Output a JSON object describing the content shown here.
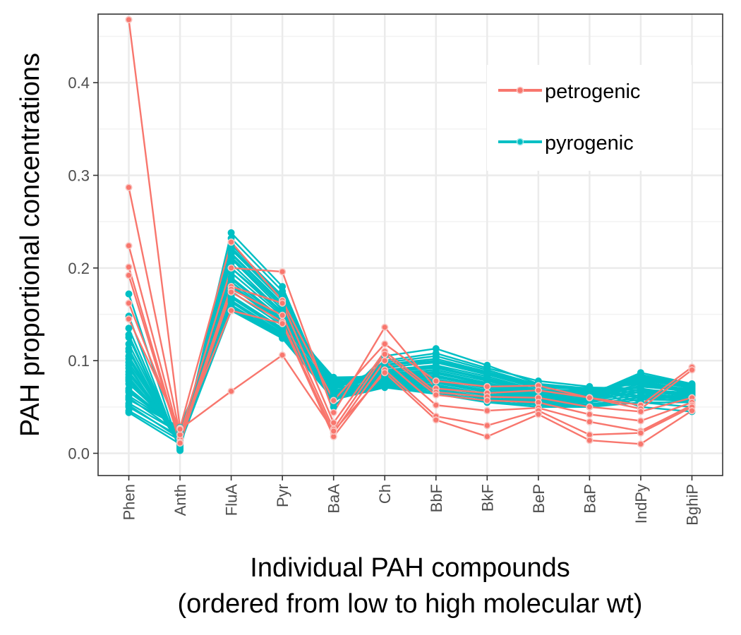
{
  "chart_data": {
    "type": "line",
    "title": "",
    "xlabel": [
      "Individual PAH compounds",
      "(ordered from low to high molecular wt)"
    ],
    "ylabel": "PAH proportional concentrations",
    "categories": [
      "Phen",
      "Anth",
      "FluA",
      "Pyr",
      "BaA",
      "Ch",
      "BbF",
      "BkF",
      "BeP",
      "BaP",
      "IndPy",
      "BghiP"
    ],
    "ylim": [
      -0.024,
      0.474
    ],
    "y_ticks": [
      0.0,
      0.1,
      0.2,
      0.3,
      0.4
    ],
    "y_tick_labels": [
      "0.0",
      "0.1",
      "0.2",
      "0.3",
      "0.4"
    ],
    "grid": true,
    "legend_position": "top-right",
    "legend": [
      {
        "label": "petrogenic",
        "color": "#F8766D"
      },
      {
        "label": "pyrogenic",
        "color": "#00BFC4"
      }
    ],
    "series": [
      {
        "group": "pyrogenic",
        "values": [
          0.172,
          0.004,
          0.238,
          0.18,
          0.05,
          0.105,
          0.113,
          0.095,
          0.075,
          0.07,
          0.05,
          0.045
        ]
      },
      {
        "group": "pyrogenic",
        "values": [
          0.148,
          0.003,
          0.232,
          0.175,
          0.055,
          0.1,
          0.108,
          0.092,
          0.078,
          0.072,
          0.055,
          0.05
        ]
      },
      {
        "group": "pyrogenic",
        "values": [
          0.135,
          0.006,
          0.225,
          0.17,
          0.06,
          0.098,
          0.105,
          0.09,
          0.074,
          0.068,
          0.06,
          0.055
        ]
      },
      {
        "group": "pyrogenic",
        "values": [
          0.125,
          0.008,
          0.22,
          0.165,
          0.065,
          0.095,
          0.1,
          0.087,
          0.072,
          0.07,
          0.065,
          0.06
        ]
      },
      {
        "group": "pyrogenic",
        "values": [
          0.118,
          0.01,
          0.215,
          0.16,
          0.07,
          0.093,
          0.098,
          0.085,
          0.07,
          0.071,
          0.07,
          0.062
        ]
      },
      {
        "group": "pyrogenic",
        "values": [
          0.11,
          0.012,
          0.21,
          0.155,
          0.072,
          0.09,
          0.095,
          0.083,
          0.068,
          0.069,
          0.075,
          0.065
        ]
      },
      {
        "group": "pyrogenic",
        "values": [
          0.105,
          0.014,
          0.205,
          0.152,
          0.075,
          0.088,
          0.092,
          0.08,
          0.066,
          0.067,
          0.078,
          0.068
        ]
      },
      {
        "group": "pyrogenic",
        "values": [
          0.098,
          0.015,
          0.2,
          0.15,
          0.078,
          0.086,
          0.09,
          0.078,
          0.065,
          0.066,
          0.08,
          0.07
        ]
      },
      {
        "group": "pyrogenic",
        "values": [
          0.092,
          0.016,
          0.195,
          0.148,
          0.08,
          0.085,
          0.088,
          0.076,
          0.064,
          0.065,
          0.082,
          0.072
        ]
      },
      {
        "group": "pyrogenic",
        "values": [
          0.088,
          0.018,
          0.19,
          0.145,
          0.082,
          0.083,
          0.086,
          0.075,
          0.063,
          0.064,
          0.085,
          0.074
        ]
      },
      {
        "group": "pyrogenic",
        "values": [
          0.085,
          0.02,
          0.185,
          0.142,
          0.079,
          0.082,
          0.084,
          0.073,
          0.062,
          0.063,
          0.087,
          0.075
        ]
      },
      {
        "group": "pyrogenic",
        "values": [
          0.08,
          0.022,
          0.18,
          0.14,
          0.076,
          0.08,
          0.082,
          0.072,
          0.061,
          0.062,
          0.083,
          0.073
        ]
      },
      {
        "group": "pyrogenic",
        "values": [
          0.075,
          0.024,
          0.175,
          0.138,
          0.073,
          0.079,
          0.08,
          0.07,
          0.06,
          0.061,
          0.079,
          0.071
        ]
      },
      {
        "group": "pyrogenic",
        "values": [
          0.07,
          0.025,
          0.17,
          0.135,
          0.07,
          0.078,
          0.078,
          0.068,
          0.059,
          0.06,
          0.075,
          0.069
        ]
      },
      {
        "group": "pyrogenic",
        "values": [
          0.066,
          0.026,
          0.168,
          0.132,
          0.068,
          0.077,
          0.076,
          0.066,
          0.058,
          0.059,
          0.072,
          0.067
        ]
      },
      {
        "group": "pyrogenic",
        "values": [
          0.062,
          0.027,
          0.165,
          0.13,
          0.066,
          0.076,
          0.074,
          0.064,
          0.057,
          0.058,
          0.069,
          0.065
        ]
      },
      {
        "group": "pyrogenic",
        "values": [
          0.058,
          0.028,
          0.163,
          0.128,
          0.065,
          0.075,
          0.072,
          0.062,
          0.056,
          0.057,
          0.066,
          0.063
        ]
      },
      {
        "group": "pyrogenic",
        "values": [
          0.054,
          0.022,
          0.16,
          0.127,
          0.063,
          0.074,
          0.07,
          0.06,
          0.055,
          0.055,
          0.063,
          0.061
        ]
      },
      {
        "group": "pyrogenic",
        "values": [
          0.05,
          0.018,
          0.158,
          0.126,
          0.062,
          0.073,
          0.068,
          0.058,
          0.054,
          0.053,
          0.06,
          0.059
        ]
      },
      {
        "group": "pyrogenic",
        "values": [
          0.046,
          0.014,
          0.156,
          0.125,
          0.06,
          0.072,
          0.066,
          0.056,
          0.052,
          0.051,
          0.058,
          0.057
        ]
      },
      {
        "group": "pyrogenic",
        "values": [
          0.044,
          0.01,
          0.154,
          0.124,
          0.058,
          0.071,
          0.064,
          0.055,
          0.05,
          0.05,
          0.055,
          0.055
        ]
      },
      {
        "group": "pyrogenic",
        "values": [
          0.095,
          0.009,
          0.212,
          0.158,
          0.074,
          0.087,
          0.094,
          0.079,
          0.067,
          0.068,
          0.077,
          0.066
        ]
      },
      {
        "group": "pyrogenic",
        "values": [
          0.078,
          0.019,
          0.182,
          0.141,
          0.077,
          0.081,
          0.083,
          0.071,
          0.062,
          0.062,
          0.081,
          0.072
        ]
      },
      {
        "group": "pyrogenic",
        "values": [
          0.102,
          0.013,
          0.2,
          0.153,
          0.071,
          0.089,
          0.093,
          0.081,
          0.067,
          0.068,
          0.076,
          0.067
        ]
      },
      {
        "group": "pyrogenic",
        "values": [
          0.113,
          0.007,
          0.216,
          0.162,
          0.069,
          0.092,
          0.099,
          0.086,
          0.071,
          0.07,
          0.068,
          0.061
        ]
      },
      {
        "group": "pyrogenic",
        "values": [
          0.068,
          0.023,
          0.169,
          0.134,
          0.067,
          0.077,
          0.077,
          0.067,
          0.058,
          0.059,
          0.073,
          0.068
        ]
      },
      {
        "group": "pyrogenic",
        "values": [
          0.06,
          0.021,
          0.164,
          0.129,
          0.064,
          0.075,
          0.073,
          0.063,
          0.056,
          0.056,
          0.067,
          0.064
        ]
      },
      {
        "group": "pyrogenic",
        "values": [
          0.052,
          0.016,
          0.159,
          0.126,
          0.061,
          0.073,
          0.069,
          0.059,
          0.053,
          0.052,
          0.061,
          0.06
        ]
      },
      {
        "group": "pyrogenic",
        "values": [
          0.128,
          0.005,
          0.222,
          0.168,
          0.063,
          0.096,
          0.102,
          0.088,
          0.073,
          0.069,
          0.062,
          0.057
        ]
      },
      {
        "group": "pyrogenic",
        "values": [
          0.082,
          0.017,
          0.188,
          0.144,
          0.08,
          0.084,
          0.087,
          0.074,
          0.063,
          0.064,
          0.084,
          0.073
        ]
      },
      {
        "group": "petrogenic",
        "values": [
          0.468,
          0.027,
          0.228,
          0.165,
          0.057,
          0.118,
          0.078,
          0.072,
          0.073,
          0.06,
          0.052,
          0.093
        ]
      },
      {
        "group": "petrogenic",
        "values": [
          0.287,
          0.02,
          0.2,
          0.196,
          0.044,
          0.136,
          0.07,
          0.065,
          0.068,
          0.06,
          0.048,
          0.09
        ]
      },
      {
        "group": "petrogenic",
        "values": [
          0.224,
          0.016,
          0.18,
          0.162,
          0.033,
          0.11,
          0.066,
          0.061,
          0.06,
          0.05,
          0.045,
          0.06
        ]
      },
      {
        "group": "petrogenic",
        "values": [
          0.201,
          0.012,
          0.177,
          0.149,
          0.026,
          0.107,
          0.063,
          0.057,
          0.055,
          0.042,
          0.035,
          0.055
        ]
      },
      {
        "group": "petrogenic",
        "values": [
          0.192,
          0.011,
          0.174,
          0.142,
          0.022,
          0.1,
          0.052,
          0.046,
          0.049,
          0.034,
          0.024,
          0.052
        ]
      },
      {
        "group": "petrogenic",
        "values": [
          0.162,
          0.02,
          0.154,
          0.14,
          0.018,
          0.09,
          0.04,
          0.03,
          0.046,
          0.02,
          0.022,
          0.05
        ]
      },
      {
        "group": "petrogenic",
        "values": [
          0.145,
          0.026,
          0.067,
          0.106,
          0.024,
          0.087,
          0.036,
          0.018,
          0.042,
          0.014,
          0.01,
          0.046
        ]
      }
    ]
  }
}
